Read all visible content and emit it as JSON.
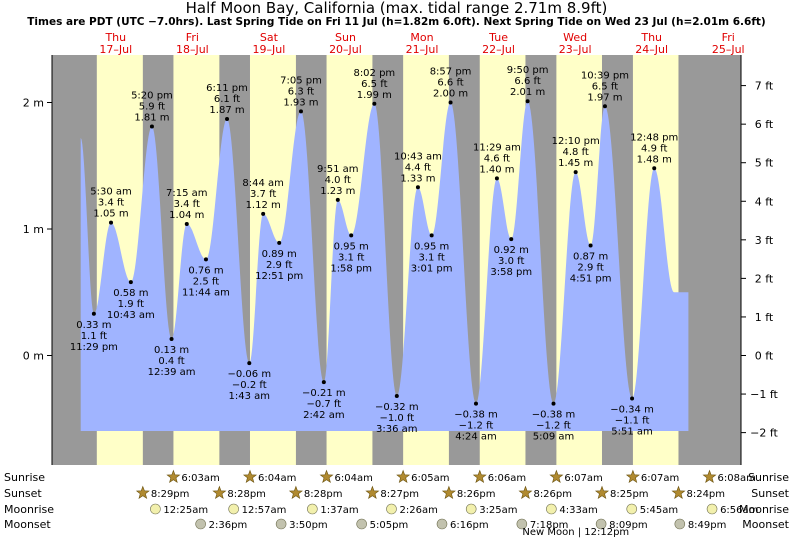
{
  "chart_data": {
    "type": "area",
    "title": "Half Moon Bay, California (max. tidal range 2.71m 8.9ft)",
    "subtitle": "Times are PDT (UTC −7.0hrs). Last Spring Tide on Fri 11 Jul (h=1.82m 6.0ft). Next Spring Tide on Wed 23 Jul (h=2.01m 6.6ft)",
    "days": [
      {
        "name": "Thu",
        "date": "17–Jul"
      },
      {
        "name": "Fri",
        "date": "18–Jul"
      },
      {
        "name": "Sat",
        "date": "19–Jul"
      },
      {
        "name": "Sun",
        "date": "20–Jul"
      },
      {
        "name": "Mon",
        "date": "21–Jul"
      },
      {
        "name": "Tue",
        "date": "22–Jul"
      },
      {
        "name": "Wed",
        "date": "23–Jul"
      },
      {
        "name": "Thu",
        "date": "24–Jul"
      },
      {
        "name": "Fri",
        "date": "25–Jul"
      }
    ],
    "y_left_unit": "m",
    "y_left_range": [
      -0.6,
      2.2
    ],
    "y_left_ticks": [
      {
        "value": 2,
        "label": "2 m"
      },
      {
        "value": 1,
        "label": "1 m"
      },
      {
        "value": 0,
        "label": "0 m"
      }
    ],
    "y_right_ticks": [
      {
        "value": 7,
        "label": "7 ft"
      },
      {
        "value": 6,
        "label": "6 ft"
      },
      {
        "value": 5,
        "label": "5 ft"
      },
      {
        "value": 4,
        "label": "4 ft"
      },
      {
        "value": 3,
        "label": "3 ft"
      },
      {
        "value": 2,
        "label": "2 ft"
      },
      {
        "value": 1,
        "label": "1 ft"
      },
      {
        "value": 0,
        "label": "0 ft"
      },
      {
        "value": -1,
        "label": "−1 ft"
      },
      {
        "value": -2,
        "label": "−2 ft"
      }
    ],
    "x_unit": "hours since midnight 17-Jul",
    "x_range": [
      -8,
      208
    ],
    "night_intervals": [
      [
        -8,
        6.05
      ],
      [
        20.48,
        30.07
      ],
      [
        44.47,
        54.07
      ],
      [
        68.47,
        78.07
      ],
      [
        92.45,
        102.08
      ],
      [
        116.43,
        126.1
      ],
      [
        140.43,
        150.12
      ],
      [
        164.42,
        174.12
      ],
      [
        188.4,
        208
      ]
    ],
    "start_level": 1.72,
    "end_level": 1.02,
    "extremes": [
      {
        "t": 5.13,
        "h": 0.33,
        "type": "low",
        "labels": [
          "0.33 m",
          "1.1 ft",
          "11:29 pm"
        ]
      },
      {
        "t": 10.5,
        "h": 1.05,
        "type": "high",
        "labels": [
          "5:30 am",
          "3.4 ft",
          "1.05 m"
        ]
      },
      {
        "t": 16.72,
        "h": 0.58,
        "type": "low",
        "labels": [
          "0.58 m",
          "1.9 ft",
          "10:43 am"
        ]
      },
      {
        "t": 23.33,
        "h": 1.81,
        "type": "high",
        "labels": [
          "5:20 pm",
          "5.9 ft",
          "1.81 m"
        ]
      },
      {
        "t": 29.48,
        "h": 0.13,
        "type": "low",
        "labels": [
          "0.13 m",
          "0.4 ft",
          "12:39 am"
        ]
      },
      {
        "t": 34.25,
        "h": 1.04,
        "type": "high",
        "labels": [
          "7:15 am",
          "3.4 ft",
          "1.04 m"
        ]
      },
      {
        "t": 40.27,
        "h": 0.76,
        "type": "low",
        "labels": [
          "0.76 m",
          "2.5 ft",
          "11:44 am"
        ]
      },
      {
        "t": 46.87,
        "h": 1.87,
        "type": "high",
        "labels": [
          "6:11 pm",
          "6.1 ft",
          "1.87 m"
        ]
      },
      {
        "t": 53.85,
        "h": -0.06,
        "type": "low",
        "labels": [
          "−0.06 m",
          "−0.2 ft",
          "1:43 am"
        ]
      },
      {
        "t": 58.2,
        "h": 1.12,
        "type": "high",
        "labels": [
          "8:44 am",
          "3.7 ft",
          "1.12 m"
        ]
      },
      {
        "t": 63.23,
        "h": 0.89,
        "type": "low",
        "labels": [
          "0.89 m",
          "2.9 ft",
          "12:51 pm"
        ]
      },
      {
        "t": 70.05,
        "h": 1.93,
        "type": "high",
        "labels": [
          "7:05 pm",
          "6.3 ft",
          "1.93 m"
        ]
      },
      {
        "t": 77.22,
        "h": -0.21,
        "type": "low",
        "labels": [
          "−0.21 m",
          "−0.7 ft",
          "2:42 am"
        ]
      },
      {
        "t": 81.6,
        "h": 1.23,
        "type": "high",
        "labels": [
          "9:51 am",
          "4.0 ft",
          "1.23 m"
        ]
      },
      {
        "t": 85.8,
        "h": 0.95,
        "type": "low",
        "labels": [
          "0.95 m",
          "3.1 ft",
          "1:58 pm"
        ]
      },
      {
        "t": 93.05,
        "h": 1.99,
        "type": "high",
        "labels": [
          "8:02 pm",
          "6.5 ft",
          "1.99 m"
        ]
      },
      {
        "t": 100.1,
        "h": -0.32,
        "type": "low",
        "labels": [
          "−0.32 m",
          "−1.0 ft",
          "3:36 am"
        ]
      },
      {
        "t": 106.72,
        "h": 1.33,
        "type": "high",
        "labels": [
          "10:43 am",
          "4.4 ft",
          "1.33 m"
        ]
      },
      {
        "t": 111.02,
        "h": 0.95,
        "type": "low",
        "labels": [
          "0.95 m",
          "3.1 ft",
          "3:01 pm"
        ]
      },
      {
        "t": 116.95,
        "h": 2.0,
        "type": "high",
        "labels": [
          "8:57 pm",
          "6.6 ft",
          "2.00 m"
        ]
      },
      {
        "t": 124.92,
        "h": -0.38,
        "type": "low",
        "labels": [
          "−0.38 m",
          "−1.2 ft",
          "4:24 am"
        ]
      },
      {
        "t": 131.48,
        "h": 1.4,
        "type": "high",
        "labels": [
          "11:29 am",
          "4.6 ft",
          "1.40 m"
        ]
      },
      {
        "t": 135.97,
        "h": 0.92,
        "type": "low",
        "labels": [
          "0.92 m",
          "3.0 ft",
          "3:58 pm"
        ]
      },
      {
        "t": 141.1,
        "h": 2.01,
        "type": "high",
        "labels": [
          "9:50 pm",
          "6.6 ft",
          "2.01 m"
        ]
      },
      {
        "t": 149.22,
        "h": -0.38,
        "type": "low",
        "labels": [
          "−0.38 m",
          "−1.2 ft",
          "5:09 am"
        ]
      },
      {
        "t": 156.17,
        "h": 1.45,
        "type": "high",
        "labels": [
          "12:10 pm",
          "4.8 ft",
          "1.45 m"
        ]
      },
      {
        "t": 160.85,
        "h": 0.87,
        "type": "low",
        "labels": [
          "0.87 m",
          "2.9 ft",
          "4:51 pm"
        ]
      },
      {
        "t": 165.35,
        "h": 1.97,
        "type": "high",
        "labels": [
          "10:39 pm",
          "6.5 ft",
          "1.97 m"
        ]
      },
      {
        "t": 173.85,
        "h": -0.34,
        "type": "low",
        "labels": [
          "−0.34 m",
          "−1.1 ft",
          "5:51 am"
        ]
      },
      {
        "t": 180.8,
        "h": 1.48,
        "type": "high",
        "labels": [
          "12:48 pm",
          "4.9 ft",
          "1.48 m"
        ]
      }
    ],
    "table": {
      "labels": [
        "Sunrise",
        "Sunset",
        "Moonrise",
        "Moonset"
      ],
      "sunrise": [
        {
          "t": 30.05,
          "label": "6:03am"
        },
        {
          "t": 54.07,
          "label": "6:04am"
        },
        {
          "t": 78.07,
          "label": "6:04am"
        },
        {
          "t": 102.08,
          "label": "6:05am"
        },
        {
          "t": 126.1,
          "label": "6:06am"
        },
        {
          "t": 150.12,
          "label": "6:07am"
        },
        {
          "t": 174.12,
          "label": "6:07am"
        },
        {
          "t": 198.13,
          "label": "6:08am"
        }
      ],
      "sunset": [
        {
          "t": 20.48,
          "label": "8:29pm"
        },
        {
          "t": 44.47,
          "label": "8:28pm"
        },
        {
          "t": 68.47,
          "label": "8:28pm"
        },
        {
          "t": 92.45,
          "label": "8:27pm"
        },
        {
          "t": 116.43,
          "label": "8:26pm"
        },
        {
          "t": 140.43,
          "label": "8:26pm"
        },
        {
          "t": 164.42,
          "label": "8:25pm"
        },
        {
          "t": 188.4,
          "label": "8:24pm"
        }
      ],
      "moonrise": [
        {
          "t": 24.42,
          "label": "12:25am"
        },
        {
          "t": 48.95,
          "label": "12:57am"
        },
        {
          "t": 73.62,
          "label": "1:37am"
        },
        {
          "t": 98.43,
          "label": "2:26am"
        },
        {
          "t": 123.42,
          "label": "3:25am"
        },
        {
          "t": 148.55,
          "label": "4:33am"
        },
        {
          "t": 173.75,
          "label": "5:45am"
        },
        {
          "t": 198.93,
          "label": "6:56am"
        }
      ],
      "moonset": [
        {
          "t": 38.6,
          "label": "2:36pm"
        },
        {
          "t": 63.83,
          "label": "3:50pm"
        },
        {
          "t": 89.08,
          "label": "5:05pm"
        },
        {
          "t": 114.27,
          "label": "6:16pm"
        },
        {
          "t": 139.3,
          "label": "7:18pm"
        },
        {
          "t": 164.15,
          "label": "8:09pm"
        },
        {
          "t": 188.82,
          "label": "8:49pm"
        }
      ],
      "moon_phase": {
        "t": 156.2,
        "label": "New Moon | 12:12pm"
      }
    },
    "colors": {
      "day_bg": "#ffffc8",
      "night_bg": "#999999",
      "water": "#a0b4ff",
      "day_label": "#e00000",
      "star": "#b08a30",
      "moon": "#f2f0ad",
      "moonset": "#c2c2ae"
    }
  }
}
